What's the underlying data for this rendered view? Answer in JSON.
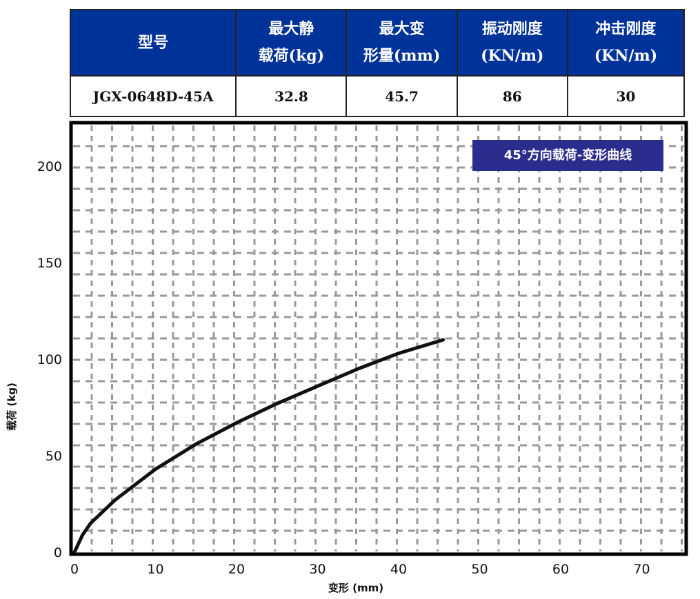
{
  "spec_table": {
    "headers": [
      [
        "型号"
      ],
      [
        "最大静",
        "载荷(kg)"
      ],
      [
        "最大变",
        "形量(mm)"
      ],
      [
        "振动刚度",
        "(KN/m)"
      ],
      [
        "冲击刚度",
        "(KN/m)"
      ]
    ],
    "row": [
      "JGX-0648D-45A",
      "32.8",
      "45.7",
      "86",
      "30"
    ],
    "header_color": "#003399"
  },
  "chart_data": {
    "type": "line",
    "title": "45°方向载荷-变形曲线",
    "xlabel": "变形 (mm)",
    "ylabel": "载荷 (kg)",
    "xlim": [
      0,
      75
    ],
    "ylim": [
      0,
      220
    ],
    "xticks": [
      "0",
      "10",
      "20",
      "30",
      "40",
      "50",
      "60",
      "70"
    ],
    "yticks": [
      "0",
      "50",
      "100",
      "150",
      "200"
    ],
    "grid": true,
    "series": [
      {
        "x": [
          0,
          1,
          2,
          5,
          10,
          15,
          20,
          25,
          30,
          35,
          40,
          45.5
        ],
        "y": [
          0,
          9,
          15,
          27,
          43,
          56,
          67,
          77,
          86,
          95,
          103,
          110
        ],
        "color": "#111111"
      }
    ],
    "title_box_color": "#2b2d8c"
  }
}
